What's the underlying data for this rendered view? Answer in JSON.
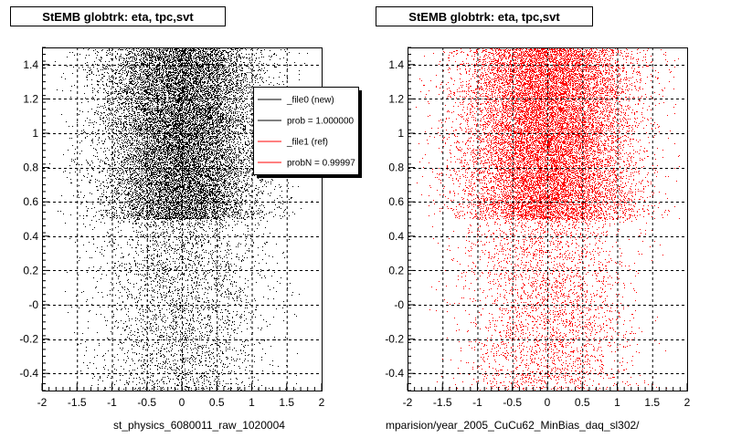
{
  "panels": [
    {
      "title": "StEMB globtrk: eta, tpc,svt",
      "bottom_label": "st_physics_6080011_raw_1020004",
      "color": "#000000"
    },
    {
      "title": "StEMB globtrk: eta, tpc,svt",
      "bottom_label": "mparision/year_2005_CuCu62_MinBias_daq_sl302/",
      "color": "#ff0000"
    }
  ],
  "legend": {
    "entries": [
      {
        "label": "_file0 (new)",
        "color": "#000000"
      },
      {
        "label": "prob = 1.000000",
        "color": "#000000"
      },
      {
        "label": "_file1 (ref)",
        "color": "#ff0000"
      },
      {
        "label": "probN = 0.99997",
        "color": "#ff0000"
      }
    ]
  },
  "chart_data": [
    {
      "type": "scatter",
      "title": "StEMB globtrk: eta, tpc,svt",
      "xlabel": "st_physics_6080011_raw_1020004",
      "ylabel": "",
      "xlim": [
        -2,
        2
      ],
      "ylim": [
        -0.5,
        1.5
      ],
      "x_ticks": [
        "-2",
        "-1.5",
        "-1",
        "-0.5",
        "0",
        "0.5",
        "1",
        "1.5",
        "2"
      ],
      "y_ticks": [
        "-0.4",
        "-0.2",
        "-0",
        "0.2",
        "0.4",
        "0.6",
        "0.8",
        "1",
        "1.2",
        "1.4"
      ],
      "grid": true,
      "series": [
        {
          "name": "_file0 (new)",
          "color": "#000000",
          "description_regions": [
            {
              "x_range": [
                -1.9,
                1.9
              ],
              "y_range": [
                0.5,
                1.5
              ],
              "density": "high",
              "x_spread_sigma": 0.55
            },
            {
              "x_range": [
                -1.7,
                1.7
              ],
              "y_range": [
                -0.5,
                0.5
              ],
              "density": "low",
              "x_spread_sigma": 0.6
            }
          ]
        }
      ]
    },
    {
      "type": "scatter",
      "title": "StEMB globtrk: eta, tpc,svt",
      "xlabel": "mparision/year_2005_CuCu62_MinBias_daq_sl302/",
      "ylabel": "",
      "xlim": [
        -2,
        2
      ],
      "ylim": [
        -0.5,
        1.5
      ],
      "x_ticks": [
        "-2",
        "-1.5",
        "-1",
        "-0.5",
        "0",
        "0.5",
        "1",
        "1.5",
        "2"
      ],
      "y_ticks": [
        "-0.4",
        "-0.2",
        "-0",
        "0.2",
        "0.4",
        "0.6",
        "0.8",
        "1",
        "1.2",
        "1.4"
      ],
      "grid": true,
      "series": [
        {
          "name": "_file1 (ref)",
          "color": "#ff0000",
          "description_regions": [
            {
              "x_range": [
                -1.9,
                1.9
              ],
              "y_range": [
                0.5,
                1.5
              ],
              "density": "high",
              "x_spread_sigma": 0.6
            },
            {
              "x_range": [
                -1.7,
                1.7
              ],
              "y_range": [
                -0.5,
                0.5
              ],
              "density": "low",
              "x_spread_sigma": 0.6
            }
          ]
        }
      ]
    }
  ]
}
